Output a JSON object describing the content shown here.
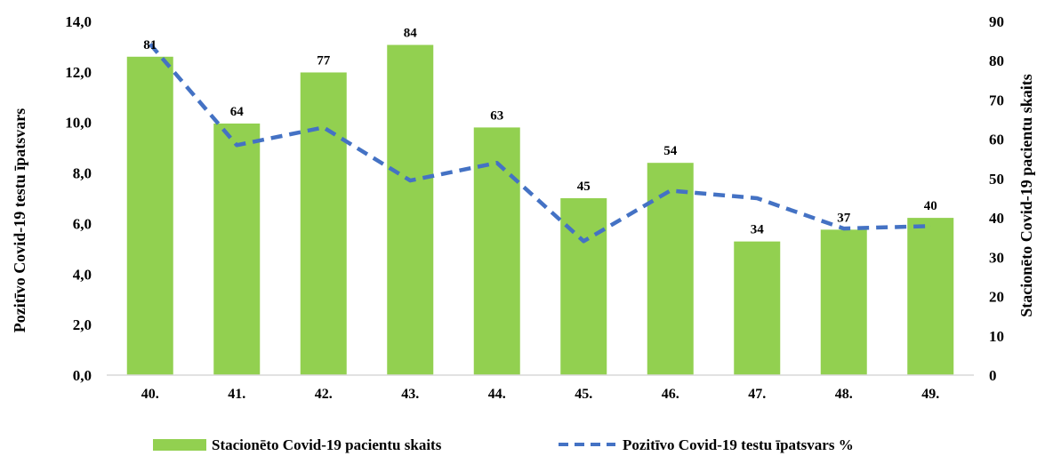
{
  "chart_data": {
    "type": "bar",
    "categories": [
      "40.",
      "41.",
      "42.",
      "43.",
      "44.",
      "45.",
      "46.",
      "47.",
      "48.",
      "49."
    ],
    "series": [
      {
        "name": "Stacionēto Covid-19 pacientu skaits",
        "kind": "bar",
        "axis": "right",
        "color": "#92d050",
        "values": [
          81,
          64,
          77,
          84,
          63,
          45,
          54,
          34,
          37,
          40
        ]
      },
      {
        "name": "Pozitīvo Covid-19 testu īpatsvars %",
        "kind": "line",
        "style": "dashed",
        "axis": "left",
        "color": "#4472c4",
        "values": [
          13.1,
          9.1,
          9.8,
          7.7,
          8.4,
          5.3,
          7.3,
          7.0,
          5.8,
          5.9
        ]
      }
    ],
    "ylabel": "Pozitīvo Covid-19 testu īpatsvars",
    "y2label": "Stacionēto Covid-19 pacientu skaits",
    "ylim": [
      0,
      14
    ],
    "y2lim": [
      0,
      90
    ],
    "yticks": [
      "0,0",
      "2,0",
      "4,0",
      "6,0",
      "8,0",
      "10,0",
      "12,0",
      "14,0"
    ],
    "y2ticks": [
      "0",
      "10",
      "20",
      "30",
      "40",
      "50",
      "60",
      "70",
      "80",
      "90"
    ],
    "grid": false,
    "legend_position": "bottom"
  }
}
